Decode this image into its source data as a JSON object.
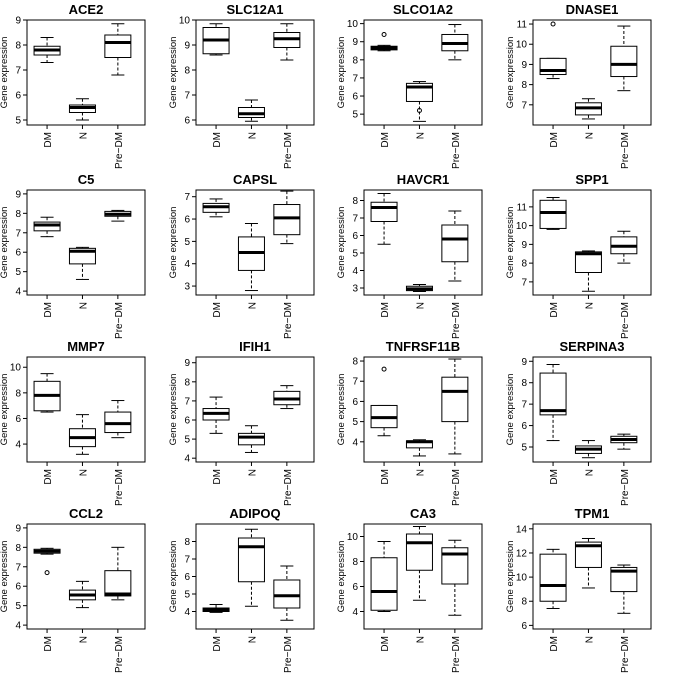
{
  "chart_data": {
    "type": "boxplot",
    "shared": {
      "ylabel": "Gene expression",
      "categories": [
        "DM",
        "N",
        "Pre−DM"
      ]
    },
    "panels": [
      {
        "title": "ACE2",
        "ylim": [
          4.8,
          9.0
        ],
        "yticks": [
          5,
          6,
          7,
          8,
          9
        ],
        "boxes": [
          {
            "min": 7.3,
            "q1": 7.6,
            "median": 7.8,
            "q3": 7.95,
            "max": 8.3,
            "outliers": []
          },
          {
            "min": 5.0,
            "q1": 5.3,
            "median": 5.5,
            "q3": 5.6,
            "max": 5.85,
            "outliers": []
          },
          {
            "min": 6.8,
            "q1": 7.5,
            "median": 8.1,
            "q3": 8.4,
            "max": 8.85,
            "outliers": []
          }
        ]
      },
      {
        "title": "SLC12A1",
        "ylim": [
          5.8,
          10.0
        ],
        "yticks": [
          6,
          7,
          8,
          9,
          10
        ],
        "boxes": [
          {
            "min": 8.6,
            "q1": 8.65,
            "median": 9.2,
            "q3": 9.7,
            "max": 9.85,
            "outliers": []
          },
          {
            "min": 5.95,
            "q1": 6.1,
            "median": 6.25,
            "q3": 6.5,
            "max": 6.8,
            "outliers": []
          },
          {
            "min": 8.4,
            "q1": 8.9,
            "median": 9.25,
            "q3": 9.5,
            "max": 9.85,
            "outliers": []
          }
        ]
      },
      {
        "title": "SLCO1A2",
        "ylim": [
          4.4,
          10.2
        ],
        "yticks": [
          5,
          6,
          7,
          8,
          9,
          10
        ],
        "boxes": [
          {
            "min": 8.5,
            "q1": 8.55,
            "median": 8.65,
            "q3": 8.75,
            "max": 8.8,
            "outliers": [
              9.4
            ]
          },
          {
            "min": 4.6,
            "q1": 5.7,
            "median": 6.5,
            "q3": 6.7,
            "max": 6.8,
            "outliers": [
              5.2
            ]
          },
          {
            "min": 8.0,
            "q1": 8.5,
            "median": 8.9,
            "q3": 9.4,
            "max": 9.95,
            "outliers": []
          }
        ]
      },
      {
        "title": "DNASE1",
        "ylim": [
          6.0,
          11.2
        ],
        "yticks": [
          7,
          8,
          9,
          10,
          11
        ],
        "boxes": [
          {
            "min": 8.3,
            "q1": 8.5,
            "median": 8.7,
            "q3": 9.3,
            "max": 9.3,
            "outliers": [
              11.0
            ]
          },
          {
            "min": 6.3,
            "q1": 6.5,
            "median": 6.85,
            "q3": 7.1,
            "max": 7.3,
            "outliers": []
          },
          {
            "min": 7.7,
            "q1": 8.4,
            "median": 9.0,
            "q3": 9.9,
            "max": 10.9,
            "outliers": []
          }
        ]
      },
      {
        "title": "C5",
        "ylim": [
          3.8,
          9.2
        ],
        "yticks": [
          4,
          5,
          6,
          7,
          8,
          9
        ],
        "boxes": [
          {
            "min": 6.8,
            "q1": 7.1,
            "median": 7.4,
            "q3": 7.55,
            "max": 7.8,
            "outliers": []
          },
          {
            "min": 4.6,
            "q1": 5.4,
            "median": 6.05,
            "q3": 6.2,
            "max": 6.25,
            "outliers": []
          },
          {
            "min": 7.6,
            "q1": 7.85,
            "median": 7.95,
            "q3": 8.1,
            "max": 8.15,
            "outliers": []
          }
        ]
      },
      {
        "title": "CAPSL",
        "ylim": [
          2.6,
          7.3
        ],
        "yticks": [
          3,
          4,
          5,
          6,
          7
        ],
        "boxes": [
          {
            "min": 6.1,
            "q1": 6.3,
            "median": 6.55,
            "q3": 6.7,
            "max": 6.9,
            "outliers": []
          },
          {
            "min": 2.8,
            "q1": 3.7,
            "median": 4.5,
            "q3": 5.2,
            "max": 5.8,
            "outliers": []
          },
          {
            "min": 4.9,
            "q1": 5.3,
            "median": 6.05,
            "q3": 6.65,
            "max": 7.25,
            "outliers": []
          }
        ]
      },
      {
        "title": "HAVCR1",
        "ylim": [
          2.6,
          8.6
        ],
        "yticks": [
          3,
          4,
          5,
          6,
          7,
          8
        ],
        "boxes": [
          {
            "min": 5.5,
            "q1": 6.8,
            "median": 7.6,
            "q3": 7.9,
            "max": 8.4,
            "outliers": []
          },
          {
            "min": 2.8,
            "q1": 2.85,
            "median": 2.95,
            "q3": 3.1,
            "max": 3.2,
            "outliers": []
          },
          {
            "min": 3.4,
            "q1": 4.5,
            "median": 5.8,
            "q3": 6.6,
            "max": 7.4,
            "outliers": []
          }
        ]
      },
      {
        "title": "SPP1",
        "ylim": [
          6.3,
          11.9
        ],
        "yticks": [
          7,
          8,
          9,
          10,
          11
        ],
        "boxes": [
          {
            "min": 9.8,
            "q1": 9.85,
            "median": 10.7,
            "q3": 11.35,
            "max": 11.5,
            "outliers": []
          },
          {
            "min": 6.5,
            "q1": 7.5,
            "median": 8.5,
            "q3": 8.6,
            "max": 8.65,
            "outliers": []
          },
          {
            "min": 8.0,
            "q1": 8.5,
            "median": 8.9,
            "q3": 9.4,
            "max": 9.7,
            "outliers": []
          }
        ]
      },
      {
        "title": "MMP7",
        "ylim": [
          2.6,
          10.8
        ],
        "yticks": [
          4,
          6,
          8,
          10
        ],
        "boxes": [
          {
            "min": 6.5,
            "q1": 6.6,
            "median": 7.8,
            "q3": 8.9,
            "max": 9.5,
            "outliers": []
          },
          {
            "min": 3.2,
            "q1": 3.8,
            "median": 4.5,
            "q3": 5.2,
            "max": 6.3,
            "outliers": []
          },
          {
            "min": 4.5,
            "q1": 4.9,
            "median": 5.6,
            "q3": 6.5,
            "max": 7.4,
            "outliers": []
          }
        ]
      },
      {
        "title": "IFIH1",
        "ylim": [
          3.8,
          9.3
        ],
        "yticks": [
          4,
          5,
          6,
          7,
          8,
          9
        ],
        "boxes": [
          {
            "min": 5.3,
            "q1": 6.0,
            "median": 6.35,
            "q3": 6.6,
            "max": 7.2,
            "outliers": []
          },
          {
            "min": 4.3,
            "q1": 4.7,
            "median": 5.1,
            "q3": 5.3,
            "max": 5.7,
            "outliers": []
          },
          {
            "min": 6.6,
            "q1": 6.8,
            "median": 7.1,
            "q3": 7.5,
            "max": 7.8,
            "outliers": []
          }
        ]
      },
      {
        "title": "TNFRSF11B",
        "ylim": [
          3.0,
          8.2
        ],
        "yticks": [
          4,
          5,
          6,
          7,
          8
        ],
        "boxes": [
          {
            "min": 4.3,
            "q1": 4.7,
            "median": 5.2,
            "q3": 5.8,
            "max": 5.8,
            "outliers": [
              7.6
            ]
          },
          {
            "min": 3.3,
            "q1": 3.7,
            "median": 4.0,
            "q3": 4.05,
            "max": 4.1,
            "outliers": []
          },
          {
            "min": 3.4,
            "q1": 5.0,
            "median": 6.5,
            "q3": 7.2,
            "max": 8.1,
            "outliers": []
          }
        ]
      },
      {
        "title": "SERPINA3",
        "ylim": [
          4.3,
          9.2
        ],
        "yticks": [
          5,
          6,
          7,
          8,
          9
        ],
        "boxes": [
          {
            "min": 5.3,
            "q1": 6.5,
            "median": 6.7,
            "q3": 8.45,
            "max": 8.85,
            "outliers": []
          },
          {
            "min": 4.5,
            "q1": 4.7,
            "median": 4.9,
            "q3": 5.05,
            "max": 5.3,
            "outliers": []
          },
          {
            "min": 4.9,
            "q1": 5.2,
            "median": 5.35,
            "q3": 5.5,
            "max": 5.6,
            "outliers": []
          }
        ]
      },
      {
        "title": "CCL2",
        "ylim": [
          3.8,
          9.2
        ],
        "yticks": [
          4,
          5,
          6,
          7,
          8,
          9
        ],
        "boxes": [
          {
            "min": 7.65,
            "q1": 7.7,
            "median": 7.8,
            "q3": 7.9,
            "max": 7.95,
            "outliers": [
              6.7
            ]
          },
          {
            "min": 4.9,
            "q1": 5.3,
            "median": 5.55,
            "q3": 5.8,
            "max": 6.25,
            "outliers": []
          },
          {
            "min": 5.3,
            "q1": 5.5,
            "median": 5.6,
            "q3": 6.8,
            "max": 8.0,
            "outliers": []
          }
        ]
      },
      {
        "title": "ADIPOQ",
        "ylim": [
          3.0,
          9.0
        ],
        "yticks": [
          4,
          5,
          6,
          7,
          8
        ],
        "boxes": [
          {
            "min": 3.95,
            "q1": 4.0,
            "median": 4.1,
            "q3": 4.2,
            "max": 4.4,
            "outliers": []
          },
          {
            "min": 4.3,
            "q1": 5.7,
            "median": 7.7,
            "q3": 8.2,
            "max": 8.7,
            "outliers": []
          },
          {
            "min": 3.5,
            "q1": 4.2,
            "median": 4.9,
            "q3": 5.8,
            "max": 6.6,
            "outliers": []
          }
        ]
      },
      {
        "title": "CA3",
        "ylim": [
          2.6,
          11.0
        ],
        "yticks": [
          4,
          6,
          8,
          10
        ],
        "boxes": [
          {
            "min": 4.0,
            "q1": 4.1,
            "median": 5.6,
            "q3": 8.3,
            "max": 9.6,
            "outliers": []
          },
          {
            "min": 4.9,
            "q1": 7.3,
            "median": 9.5,
            "q3": 10.2,
            "max": 10.8,
            "outliers": []
          },
          {
            "min": 3.7,
            "q1": 6.2,
            "median": 8.6,
            "q3": 9.1,
            "max": 9.7,
            "outliers": []
          }
        ]
      },
      {
        "title": "TPM1",
        "ylim": [
          5.7,
          14.4
        ],
        "yticks": [
          6,
          8,
          10,
          12,
          14
        ],
        "boxes": [
          {
            "min": 7.4,
            "q1": 8.0,
            "median": 9.3,
            "q3": 11.9,
            "max": 12.3,
            "outliers": []
          },
          {
            "min": 9.1,
            "q1": 10.8,
            "median": 12.6,
            "q3": 12.9,
            "max": 13.2,
            "outliers": []
          },
          {
            "min": 7.0,
            "q1": 8.8,
            "median": 10.5,
            "q3": 10.8,
            "max": 11.0,
            "outliers": []
          }
        ]
      }
    ]
  }
}
